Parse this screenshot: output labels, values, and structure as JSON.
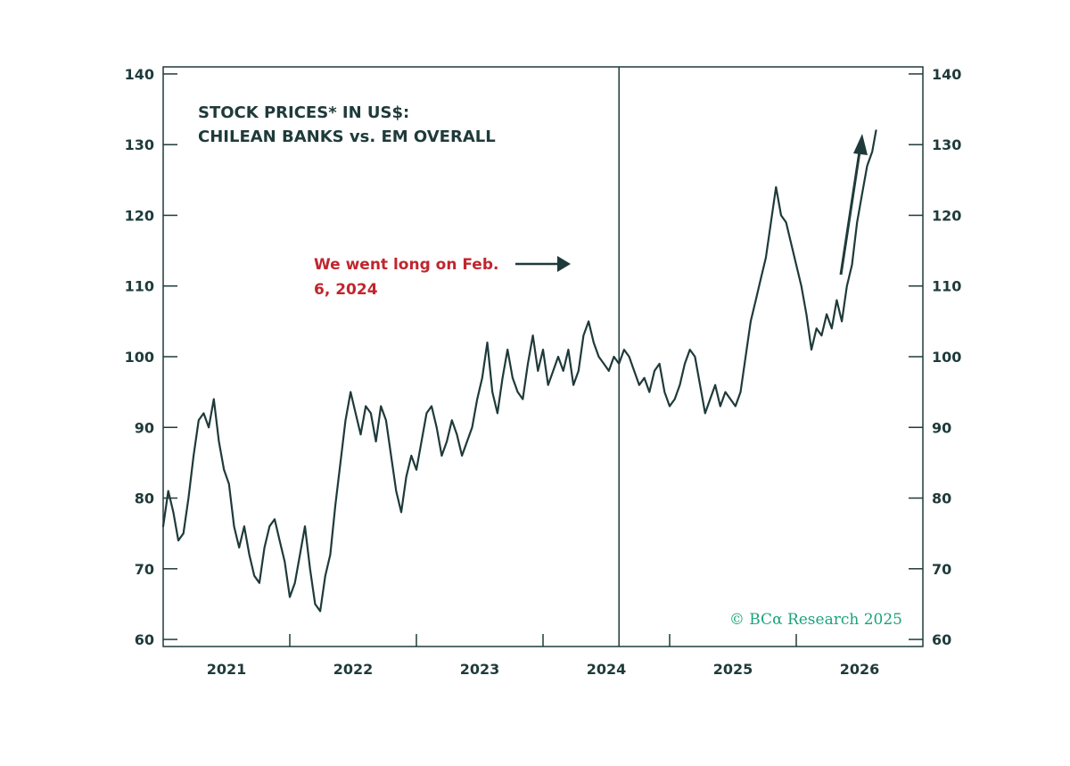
{
  "chart_data": {
    "type": "line",
    "title_lines": [
      "STOCK PRICES* IN US$:",
      "CHILEAN BANKS vs. EM OVERALL"
    ],
    "annotation_lines": [
      "We went long on Feb.",
      "6, 2024"
    ],
    "copyright": "© BCα Research 2025",
    "x_tick_labels": [
      "2021",
      "2022",
      "2023",
      "2024",
      "2025",
      "2026"
    ],
    "x_ticks": [
      2021.0,
      2022.0,
      2023.0,
      2024.0,
      2025.0,
      2026.0
    ],
    "xlim": [
      2020.5,
      2026.5
    ],
    "ylim": [
      59,
      141
    ],
    "y_ticks": [
      60,
      70,
      80,
      90,
      100,
      110,
      120,
      130,
      140
    ],
    "y_tick_labels": [
      "60",
      "70",
      "80",
      "90",
      "100",
      "110",
      "120",
      "130",
      "140"
    ],
    "event_line_x": 2024.1,
    "grid": false,
    "colors": {
      "line": "#1f3a3a",
      "annotation": "#c0262e",
      "copyright": "#1aa37a"
    },
    "series": [
      {
        "points": [
          [
            2020.5,
            76
          ],
          [
            2020.54,
            81
          ],
          [
            2020.58,
            78
          ],
          [
            2020.62,
            74
          ],
          [
            2020.66,
            75
          ],
          [
            2020.7,
            80
          ],
          [
            2020.74,
            86
          ],
          [
            2020.78,
            91
          ],
          [
            2020.82,
            92
          ],
          [
            2020.86,
            90
          ],
          [
            2020.9,
            94
          ],
          [
            2020.94,
            88
          ],
          [
            2020.98,
            84
          ],
          [
            2021.02,
            82
          ],
          [
            2021.06,
            76
          ],
          [
            2021.1,
            73
          ],
          [
            2021.14,
            76
          ],
          [
            2021.18,
            72
          ],
          [
            2021.22,
            69
          ],
          [
            2021.26,
            68
          ],
          [
            2021.3,
            73
          ],
          [
            2021.34,
            76
          ],
          [
            2021.38,
            77
          ],
          [
            2021.42,
            74
          ],
          [
            2021.46,
            71
          ],
          [
            2021.5,
            66
          ],
          [
            2021.54,
            68
          ],
          [
            2021.58,
            72
          ],
          [
            2021.62,
            76
          ],
          [
            2021.66,
            70
          ],
          [
            2021.7,
            65
          ],
          [
            2021.74,
            64
          ],
          [
            2021.78,
            69
          ],
          [
            2021.82,
            72
          ],
          [
            2021.86,
            79
          ],
          [
            2021.9,
            85
          ],
          [
            2021.94,
            91
          ],
          [
            2021.98,
            95
          ],
          [
            2022.02,
            92
          ],
          [
            2022.06,
            89
          ],
          [
            2022.1,
            93
          ],
          [
            2022.14,
            92
          ],
          [
            2022.18,
            88
          ],
          [
            2022.22,
            93
          ],
          [
            2022.26,
            91
          ],
          [
            2022.3,
            86
          ],
          [
            2022.34,
            81
          ],
          [
            2022.38,
            78
          ],
          [
            2022.42,
            83
          ],
          [
            2022.46,
            86
          ],
          [
            2022.5,
            84
          ],
          [
            2022.54,
            88
          ],
          [
            2022.58,
            92
          ],
          [
            2022.62,
            93
          ],
          [
            2022.66,
            90
          ],
          [
            2022.7,
            86
          ],
          [
            2022.74,
            88
          ],
          [
            2022.78,
            91
          ],
          [
            2022.82,
            89
          ],
          [
            2022.86,
            86
          ],
          [
            2022.9,
            88
          ],
          [
            2022.94,
            90
          ],
          [
            2022.98,
            94
          ],
          [
            2023.02,
            97
          ],
          [
            2023.06,
            102
          ],
          [
            2023.1,
            95
          ],
          [
            2023.14,
            92
          ],
          [
            2023.18,
            97
          ],
          [
            2023.22,
            101
          ],
          [
            2023.26,
            97
          ],
          [
            2023.3,
            95
          ],
          [
            2023.34,
            94
          ],
          [
            2023.38,
            99
          ],
          [
            2023.42,
            103
          ],
          [
            2023.46,
            98
          ],
          [
            2023.5,
            101
          ],
          [
            2023.54,
            96
          ],
          [
            2023.58,
            98
          ],
          [
            2023.62,
            100
          ],
          [
            2023.66,
            98
          ],
          [
            2023.7,
            101
          ],
          [
            2023.74,
            96
          ],
          [
            2023.78,
            98
          ],
          [
            2023.82,
            103
          ],
          [
            2023.86,
            105
          ],
          [
            2023.9,
            102
          ],
          [
            2023.94,
            100
          ],
          [
            2023.98,
            99
          ],
          [
            2024.02,
            98
          ],
          [
            2024.06,
            100
          ],
          [
            2024.1,
            99
          ],
          [
            2024.14,
            101
          ],
          [
            2024.18,
            100
          ],
          [
            2024.22,
            98
          ],
          [
            2024.26,
            96
          ],
          [
            2024.3,
            97
          ],
          [
            2024.34,
            95
          ],
          [
            2024.38,
            98
          ],
          [
            2024.42,
            99
          ],
          [
            2024.46,
            95
          ],
          [
            2024.5,
            93
          ],
          [
            2024.54,
            94
          ],
          [
            2024.58,
            96
          ],
          [
            2024.62,
            99
          ],
          [
            2024.66,
            101
          ],
          [
            2024.7,
            100
          ],
          [
            2024.74,
            96
          ],
          [
            2024.78,
            92
          ],
          [
            2024.82,
            94
          ],
          [
            2024.86,
            96
          ],
          [
            2024.9,
            93
          ],
          [
            2024.94,
            95
          ],
          [
            2024.98,
            94
          ],
          [
            2025.02,
            93
          ],
          [
            2025.06,
            95
          ],
          [
            2025.1,
            100
          ],
          [
            2025.14,
            105
          ],
          [
            2025.18,
            108
          ],
          [
            2025.22,
            111
          ],
          [
            2025.26,
            114
          ],
          [
            2025.3,
            119
          ],
          [
            2025.34,
            124
          ],
          [
            2025.38,
            120
          ],
          [
            2025.42,
            119
          ],
          [
            2025.46,
            116
          ],
          [
            2025.5,
            113
          ],
          [
            2025.54,
            110
          ],
          [
            2025.58,
            106
          ],
          [
            2025.62,
            101
          ],
          [
            2025.66,
            104
          ],
          [
            2025.7,
            103
          ],
          [
            2025.74,
            106
          ],
          [
            2025.78,
            104
          ],
          [
            2025.82,
            108
          ],
          [
            2025.86,
            105
          ],
          [
            2025.9,
            110
          ],
          [
            2025.94,
            113
          ],
          [
            2025.98,
            119
          ],
          [
            2026.02,
            123
          ],
          [
            2026.06,
            127
          ],
          [
            2026.1,
            129
          ],
          [
            2026.13,
            132
          ]
        ]
      }
    ]
  }
}
